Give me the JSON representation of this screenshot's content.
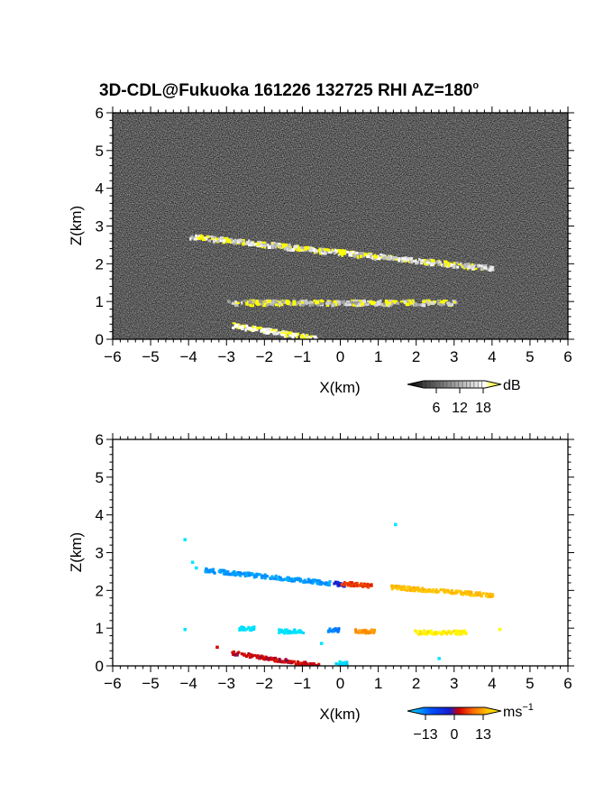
{
  "title": "3D-CDL@Fukuoka 161226 132725 RHI AZ=180",
  "title_degree": "o",
  "chart_data": [
    {
      "type": "heatmap",
      "panel": "top",
      "quantity": "backscatter intensity",
      "xlabel": "X(km)",
      "ylabel": "Z(km)",
      "xlim": [
        -6,
        6
      ],
      "ylim": [
        0,
        6
      ],
      "xticks": [
        "-6",
        "-5",
        "-4",
        "-3",
        "-2",
        "-1",
        "0",
        "1",
        "2",
        "3",
        "4",
        "5",
        "6"
      ],
      "yticks": [
        "0",
        "1",
        "2",
        "3",
        "4",
        "5",
        "6"
      ],
      "background": "noisy grey speckle",
      "colorbar": {
        "ticks": [
          "6",
          "12",
          "18"
        ],
        "unit": "dB",
        "colors": [
          "#000000",
          "#ffffff",
          "#ffff00"
        ]
      },
      "features": [
        {
          "name": "upper layer",
          "x_start": -4.0,
          "x_end": 4.0,
          "z_start": 2.75,
          "z_end": 1.9,
          "intensity_db": 14,
          "peak_db": 20
        },
        {
          "name": "low clouds",
          "x_start": -3.0,
          "x_end": 3.0,
          "z": 1.0,
          "intensity_db": 12,
          "peak_db": 20
        },
        {
          "name": "ground-adjacent streak",
          "x_start": -2.9,
          "x_end": -0.7,
          "z_start": 0.4,
          "z_end": 0.05,
          "intensity_db": 18
        }
      ]
    },
    {
      "type": "scatter",
      "panel": "bottom",
      "quantity": "Doppler velocity",
      "xlabel": "X(km)",
      "ylabel": "Z(km)",
      "xlim": [
        -6,
        6
      ],
      "ylim": [
        0,
        6
      ],
      "xticks": [
        "-6",
        "-5",
        "-4",
        "-3",
        "-2",
        "-1",
        "0",
        "1",
        "2",
        "3",
        "4",
        "5",
        "6"
      ],
      "yticks": [
        "0",
        "1",
        "2",
        "3",
        "4",
        "5",
        "6"
      ],
      "colorbar": {
        "ticks": [
          "−13",
          "0",
          "13"
        ],
        "unit": "ms",
        "unit_exp": "−1",
        "colors": [
          "#00e5ff",
          "#0050ff",
          "#1a1acc",
          "#d00000",
          "#ff6a00",
          "#ffc000",
          "#ffff00"
        ]
      },
      "series": [
        {
          "x_start": -3.6,
          "x_end": -0.3,
          "z_start": 2.57,
          "z_end": 2.22,
          "velocity": -10
        },
        {
          "x_start": -0.2,
          "x_end": 0.1,
          "z_start": 2.22,
          "z_end": 2.18,
          "velocity": -2
        },
        {
          "x_start": 0.0,
          "x_end": 0.8,
          "z_start": 2.22,
          "z_end": 2.15,
          "velocity": 3
        },
        {
          "x_start": 1.3,
          "x_end": 4.0,
          "z_start": 2.12,
          "z_end": 1.9,
          "velocity": 9
        },
        {
          "x_start": -2.7,
          "x_end": -2.3,
          "z": 1.02,
          "velocity": -13
        },
        {
          "x_start": -1.7,
          "x_end": -1.0,
          "z": 0.95,
          "velocity": -13
        },
        {
          "x_start": -0.35,
          "x_end": -0.05,
          "z": 0.98,
          "velocity": -9
        },
        {
          "x_start": 0.35,
          "x_end": 0.9,
          "z": 0.95,
          "velocity": 7
        },
        {
          "x_start": 1.9,
          "x_end": 3.3,
          "z": 0.92,
          "velocity": 12
        },
        {
          "x_start": -2.9,
          "x_end": -0.6,
          "z_start": 0.38,
          "z_end": 0.03,
          "velocity": 1
        },
        {
          "x_start": -0.15,
          "x_end": 0.15,
          "z": 0.1,
          "velocity": -13
        }
      ],
      "points": [
        {
          "x": -4.1,
          "z": 3.35,
          "velocity": -13
        },
        {
          "x": -3.9,
          "z": 2.75,
          "velocity": -13
        },
        {
          "x": -3.8,
          "z": 2.6,
          "velocity": -13
        },
        {
          "x": 1.45,
          "z": 3.75,
          "velocity": -13
        },
        {
          "x": -4.1,
          "z": 0.97,
          "velocity": -13
        },
        {
          "x": -3.25,
          "z": 0.5,
          "velocity": 1
        },
        {
          "x": -0.5,
          "z": 0.6,
          "velocity": -13
        },
        {
          "x": 2.6,
          "z": 0.2,
          "velocity": -13
        },
        {
          "x": 4.2,
          "z": 0.97,
          "velocity": 13
        }
      ]
    }
  ]
}
